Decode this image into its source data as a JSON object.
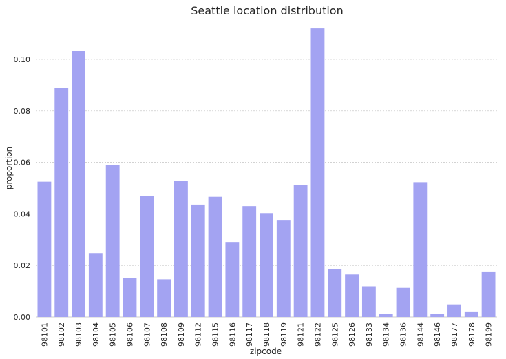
{
  "chart_data": {
    "type": "bar",
    "title": "Seattle location distribution",
    "xlabel": "zipcode",
    "ylabel": "proportion",
    "categories": [
      "98101",
      "98102",
      "98103",
      "98104",
      "98105",
      "98106",
      "98107",
      "98108",
      "98109",
      "98112",
      "98115",
      "98116",
      "98117",
      "98118",
      "98119",
      "98121",
      "98122",
      "98125",
      "98126",
      "98133",
      "98134",
      "98136",
      "98144",
      "98146",
      "98177",
      "98178",
      "98199"
    ],
    "values": [
      0.0525,
      0.0888,
      0.1032,
      0.0248,
      0.059,
      0.0152,
      0.047,
      0.0146,
      0.0528,
      0.0436,
      0.0466,
      0.0291,
      0.043,
      0.0403,
      0.0374,
      0.0512,
      0.112,
      0.0187,
      0.0165,
      0.0119,
      0.0013,
      0.0113,
      0.0523,
      0.0013,
      0.0049,
      0.0019,
      0.0174
    ],
    "yticks": [
      "0.00",
      "0.02",
      "0.04",
      "0.06",
      "0.08",
      "0.10"
    ],
    "ylim": [
      0,
      0.1155
    ],
    "grid": "horizontal dotted",
    "colors": {
      "bar": "#a3a3f2",
      "grid": "#cccccc",
      "text": "#262626"
    }
  }
}
